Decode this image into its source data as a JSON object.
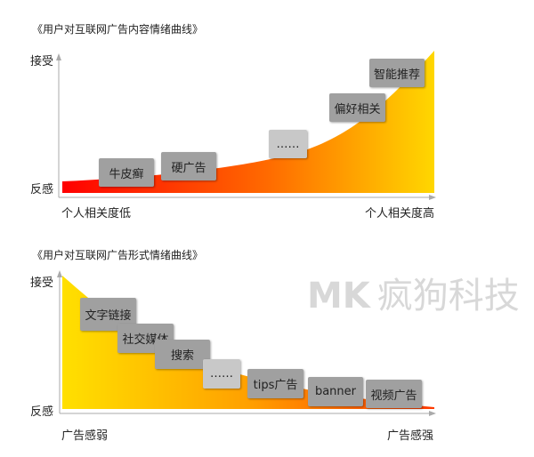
{
  "chart1": {
    "title": "《用户对互联网广告内容情绪曲线》",
    "y_top": "接受",
    "y_bottom": "反感",
    "x_left": "个人相关度低",
    "x_right": "个人相关度高",
    "boxes": [
      "牛皮癣",
      "硬广告",
      "……",
      "偏好相关",
      "智能推荐"
    ],
    "gradient": [
      "#ff0000",
      "#ff6a00",
      "#ffd700"
    ]
  },
  "chart2": {
    "title": "《用户对互联网广告形式情绪曲线》",
    "y_top": "接受",
    "y_bottom": "反感",
    "x_left": "广告感弱",
    "x_right": "广告感强",
    "boxes": [
      "文字链接",
      "社交媒体",
      "搜索",
      "……",
      "tips广告",
      "banner",
      "视频广告"
    ],
    "gradient": [
      "#ffe000",
      "#ffa000",
      "#ff4000"
    ]
  },
  "watermark": {
    "logo": "MK",
    "text": "疯狗科技"
  }
}
